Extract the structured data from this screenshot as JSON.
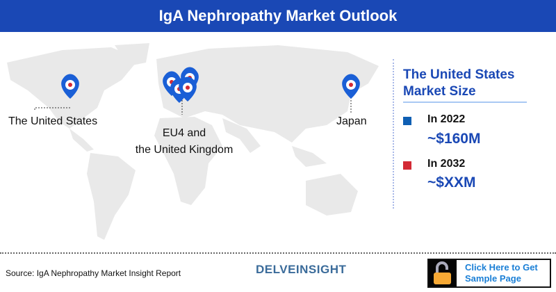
{
  "header": {
    "title": "IgA Nephropathy Market Outlook"
  },
  "map": {
    "labels": {
      "us": "The United States",
      "eu_line1": "EU4 and",
      "eu_line2": "the United Kingdom",
      "japan": "Japan"
    }
  },
  "panel": {
    "title_line1": "The United States",
    "title_line2": "Market Size",
    "items": [
      {
        "year": "In 2022",
        "value": "~$160M",
        "color": "#0f5fb3"
      },
      {
        "year": "In 2032",
        "value": "~$XXM",
        "color": "#d32a35"
      }
    ]
  },
  "footer": {
    "source": "Source: IgA Nephropathy Market Insight Report",
    "logo": "DELVEINSIGHT",
    "cta_line1": "Click Here to Get",
    "cta_line2": "Sample Page"
  }
}
